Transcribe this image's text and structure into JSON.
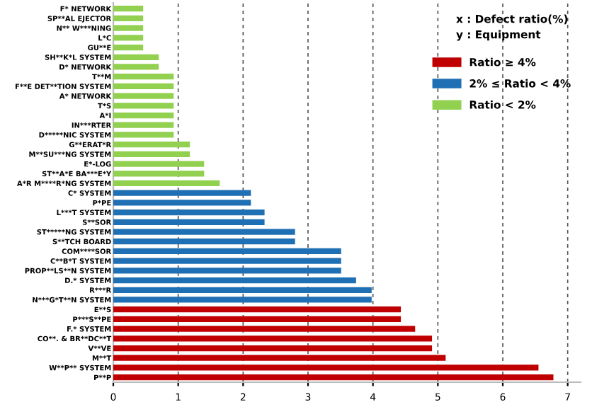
{
  "chart_data": {
    "type": "bar",
    "orientation": "horizontal",
    "categories": [
      "F* NETWORK",
      "SP**AL EJECTOR",
      "N** W***NING",
      "L*C",
      "GU**E",
      "SH**K*L SYSTEM",
      "D* NETWORK",
      "T**M",
      "F**E DET**TION SYSTEM",
      "A* NETWORK",
      "T*S",
      "A*I",
      "IN***RTER",
      "D*****NIC SYSTEM",
      "G**ERAT*R",
      "M**SU***NG SYSTEM",
      "E*-LOG",
      "ST**A*E BA***E*Y",
      "A*R M****R*NG SYSTEM",
      "C* SYSTEM",
      "P*PE",
      "L***T SYSTEM",
      "S**SOR",
      "ST*****NG SYSTEM",
      "S**TCH BOARD",
      "COM****SOR",
      "C**B*T SYSTEM",
      "PROP**LS**N SYSTEM",
      "D.* SYSTEM",
      "R***R",
      "N***G*T**N SYSTEM",
      "E**S",
      "P***S**PE",
      "F.* SYSTEM",
      "CO**. & BR**DC**T",
      "V**VE",
      "M**T",
      "W**P** SYSTEM",
      "P**P"
    ],
    "series": [
      {
        "name": "Ratio ≥ 4%",
        "color": "#c00000",
        "values": [
          null,
          null,
          null,
          null,
          null,
          null,
          null,
          null,
          null,
          null,
          null,
          null,
          null,
          null,
          null,
          null,
          null,
          null,
          null,
          null,
          null,
          null,
          null,
          null,
          null,
          null,
          null,
          null,
          null,
          null,
          null,
          4.43,
          4.43,
          4.65,
          4.91,
          4.91,
          5.12,
          6.55,
          6.78
        ]
      },
      {
        "name": "2% ≤ Ratio < 4%",
        "color": "#1f6fb5",
        "values": [
          null,
          null,
          null,
          null,
          null,
          null,
          null,
          null,
          null,
          null,
          null,
          null,
          null,
          null,
          null,
          null,
          null,
          null,
          null,
          2.12,
          2.12,
          2.33,
          2.33,
          2.8,
          2.8,
          3.51,
          3.51,
          3.51,
          3.74,
          3.98,
          3.98,
          null,
          null,
          null,
          null,
          null,
          null,
          null,
          null
        ]
      },
      {
        "name": "Ratio < 2%",
        "color": "#92d050",
        "values": [
          0.46,
          0.46,
          0.46,
          0.46,
          0.46,
          0.7,
          0.7,
          0.93,
          0.93,
          0.93,
          0.93,
          0.93,
          0.93,
          0.93,
          1.18,
          1.18,
          1.4,
          1.4,
          1.64,
          null,
          null,
          null,
          null,
          null,
          null,
          null,
          null,
          null,
          null,
          null,
          null,
          null,
          null,
          null,
          null,
          null,
          null,
          null,
          null
        ]
      }
    ],
    "xlim": [
      0,
      7.2
    ],
    "xticks": [
      0,
      1,
      2,
      3,
      4,
      5,
      6,
      7
    ],
    "grid": "x",
    "legend": "top right",
    "annotations": [
      "x : Defect ratio(%)",
      "y : Equipment"
    ]
  }
}
